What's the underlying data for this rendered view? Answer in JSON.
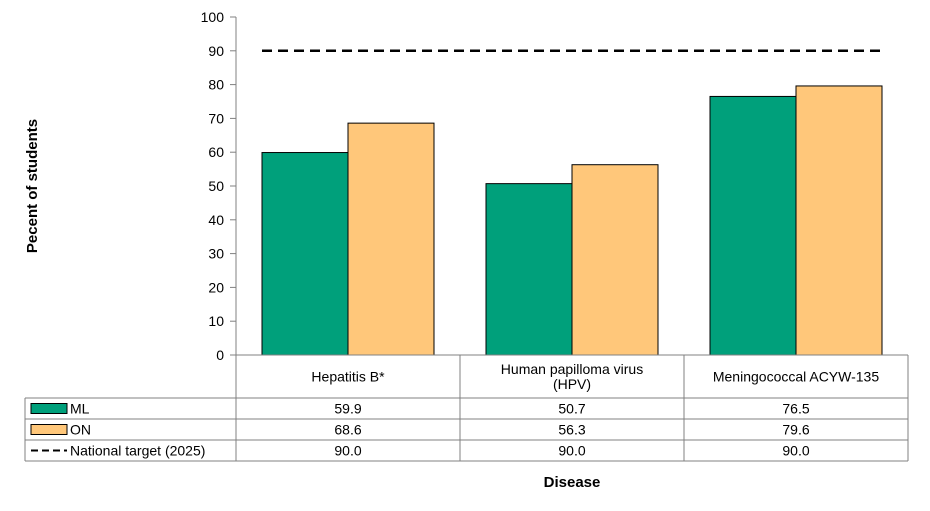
{
  "chart_data": {
    "type": "bar",
    "title": "",
    "ylabel": "Pecent of students",
    "xlabel": "Disease",
    "ylim": [
      0,
      100
    ],
    "yticks": [
      0,
      10,
      20,
      30,
      40,
      50,
      60,
      70,
      80,
      90,
      100
    ],
    "categories": [
      [
        "Hepatitis B*"
      ],
      [
        "Human papilloma virus",
        "(HPV)"
      ],
      [
        "Meningococcal ACYW-135"
      ]
    ],
    "series": [
      {
        "name": "ML",
        "type": "bar",
        "color": "#00a07b",
        "values": [
          59.9,
          50.7,
          76.5
        ],
        "labels": [
          "59.9",
          "50.7",
          "76.5"
        ]
      },
      {
        "name": "ON",
        "type": "bar",
        "color": "#ffc77a",
        "values": [
          68.6,
          56.3,
          79.6
        ],
        "labels": [
          "68.6",
          "56.3",
          "79.6"
        ]
      },
      {
        "name": "National target (2025)",
        "type": "dashed-line",
        "color": "#000000",
        "values": [
          90.0,
          90.0,
          90.0
        ],
        "labels": [
          "90.0",
          "90.0",
          "90.0"
        ]
      }
    ],
    "grid": false,
    "legend": "data-table"
  }
}
